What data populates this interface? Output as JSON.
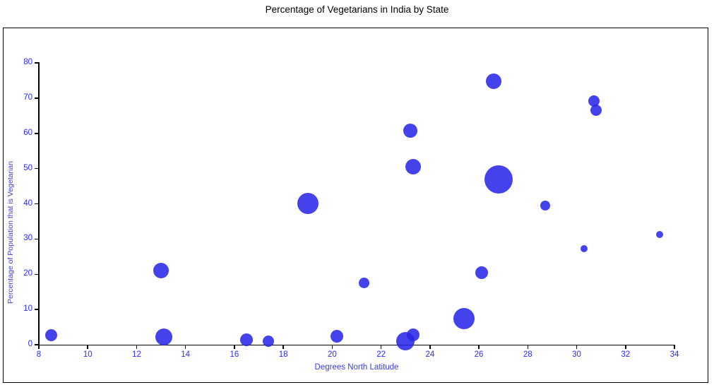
{
  "chart_data": {
    "type": "scatter",
    "title": "Percentage of Vegetarians in India by State",
    "xlabel": "Degrees North Latitude",
    "ylabel": "Percentage of Population that is Vegetarian",
    "xlim": [
      8,
      34
    ],
    "ylim": [
      0,
      80
    ],
    "x_ticks": [
      8,
      10,
      12,
      14,
      16,
      18,
      20,
      22,
      24,
      26,
      28,
      30,
      32,
      34
    ],
    "y_ticks": [
      0,
      10,
      20,
      30,
      40,
      50,
      60,
      70,
      80
    ],
    "grid": false,
    "legend": "none",
    "title_color": "#000000",
    "tick_label_color": "#2b2bf2",
    "axis_label_color": "#3b3bda",
    "axis_color": "#000000",
    "bubble_color": "#2826e8",
    "bubble_opacity": 0.87,
    "points": [
      {
        "x": 8.5,
        "y": 2.8,
        "r": 8.5
      },
      {
        "x": 13.0,
        "y": 21.0,
        "r": 11
      },
      {
        "x": 13.1,
        "y": 2.2,
        "r": 12
      },
      {
        "x": 16.5,
        "y": 1.5,
        "r": 9
      },
      {
        "x": 17.4,
        "y": 1.1,
        "r": 8
      },
      {
        "x": 19.0,
        "y": 40.2,
        "r": 15
      },
      {
        "x": 20.2,
        "y": 2.4,
        "r": 9
      },
      {
        "x": 21.3,
        "y": 17.6,
        "r": 7.5
      },
      {
        "x": 23.0,
        "y": 1.1,
        "r": 13
      },
      {
        "x": 23.3,
        "y": 2.9,
        "r": 9
      },
      {
        "x": 23.2,
        "y": 60.8,
        "r": 10
      },
      {
        "x": 23.3,
        "y": 50.5,
        "r": 11
      },
      {
        "x": 25.4,
        "y": 7.4,
        "r": 15
      },
      {
        "x": 26.1,
        "y": 20.5,
        "r": 9
      },
      {
        "x": 26.6,
        "y": 74.8,
        "r": 11
      },
      {
        "x": 26.8,
        "y": 47.0,
        "r": 20
      },
      {
        "x": 28.7,
        "y": 39.5,
        "r": 7
      },
      {
        "x": 30.3,
        "y": 27.2,
        "r": 5
      },
      {
        "x": 30.7,
        "y": 69.2,
        "r": 8
      },
      {
        "x": 30.8,
        "y": 66.6,
        "r": 8
      },
      {
        "x": 33.4,
        "y": 31.3,
        "r": 5
      }
    ]
  }
}
